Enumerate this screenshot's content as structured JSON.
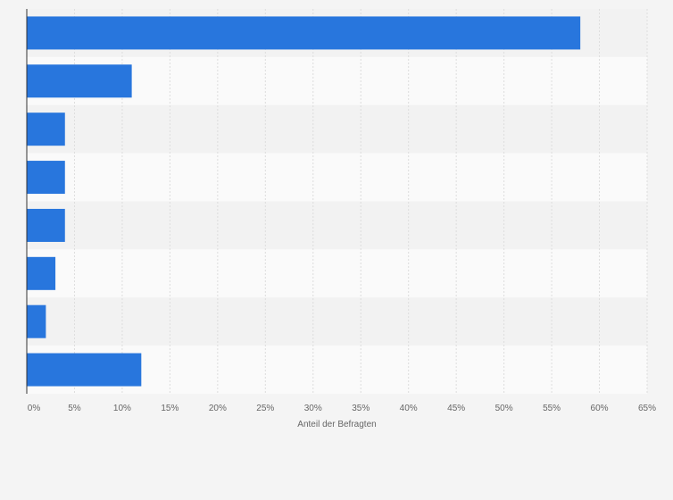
{
  "colors": {
    "background": "#f4f4f4",
    "band_light": "#fafafa",
    "band_dark": "#f2f2f2",
    "gridline": "#dddddd",
    "axis_line": "#333333",
    "bar": "#2876dd",
    "tick_text": "#666666"
  },
  "chart_data": {
    "type": "bar",
    "orientation": "horizontal",
    "categories": [
      "",
      "",
      "",
      "",
      "",
      "",
      "",
      ""
    ],
    "values": [
      58,
      11,
      4,
      4,
      4,
      3,
      2,
      12
    ],
    "xlabel": "Anteil der Befragten",
    "ylabel": "",
    "xlim": [
      0,
      65
    ],
    "x_ticks": [
      "0%",
      "5%",
      "10%",
      "15%",
      "20%",
      "25%",
      "30%",
      "35%",
      "40%",
      "45%",
      "50%",
      "55%",
      "60%",
      "65%"
    ],
    "grid": true,
    "legend": "none"
  }
}
